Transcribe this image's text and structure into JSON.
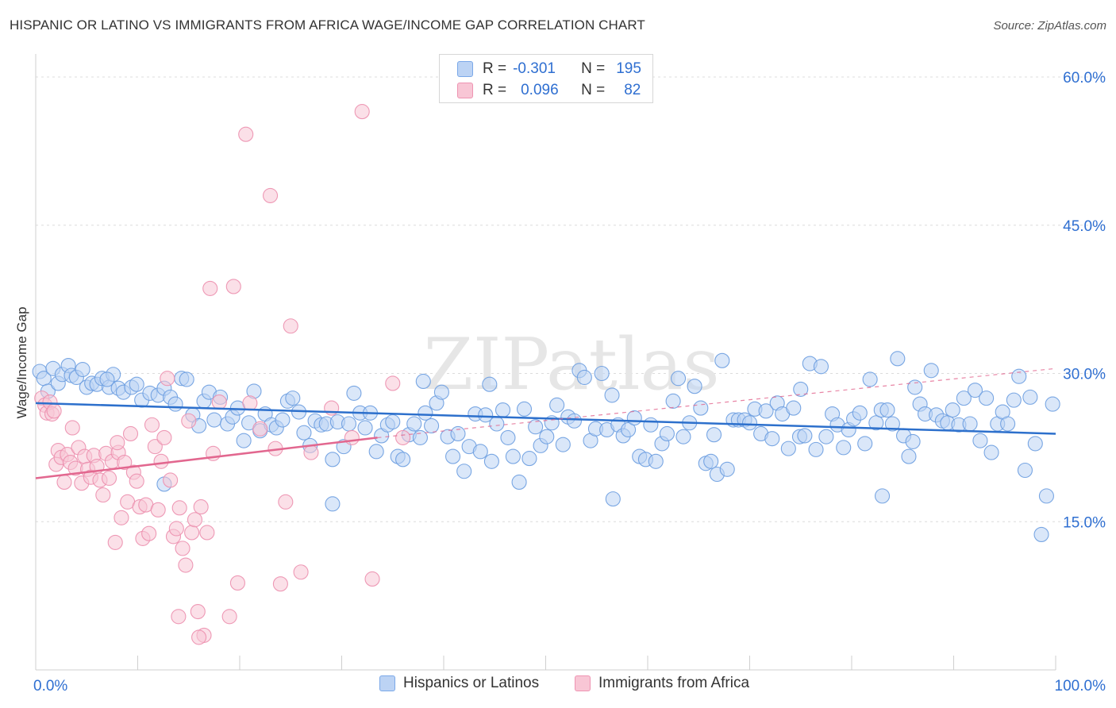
{
  "header": {
    "title": "HISPANIC OR LATINO VS IMMIGRANTS FROM AFRICA WAGE/INCOME GAP CORRELATION CHART",
    "source": "Source: ZipAtlas.com"
  },
  "stats_legend": {
    "rows": [
      {
        "r_label": "R =",
        "r_value": "-0.301",
        "n_label": "N =",
        "n_value": "195",
        "color": "#7aa8e8",
        "fill": "#bcd3f4"
      },
      {
        "r_label": "R =",
        "r_value": "0.096",
        "n_label": "N =",
        "n_value": "82",
        "color": "#ee94b2",
        "fill": "#f8c6d5"
      }
    ]
  },
  "legend": {
    "items": [
      {
        "label": "Hispanics or Latinos",
        "color": "#7aa8e8",
        "fill": "#bcd3f4"
      },
      {
        "label": "Immigrants from Africa",
        "color": "#ee94b2",
        "fill": "#f8c6d5"
      }
    ]
  },
  "chart_data": {
    "type": "scatter",
    "title": "HISPANIC OR LATINO VS IMMIGRANTS FROM AFRICA WAGE/INCOME GAP CORRELATION CHART",
    "xlabel": "",
    "ylabel": "Wage/Income Gap",
    "xlim": [
      0,
      100
    ],
    "ylim": [
      0,
      60
    ],
    "x_tick_labels": [
      "0.0%",
      "100.0%"
    ],
    "y_ticks": [
      15,
      30,
      45,
      60
    ],
    "y_tick_labels": [
      "15.0%",
      "30.0%",
      "45.0%",
      "60.0%"
    ],
    "grid": true,
    "legend_position": "bottom",
    "watermark": "ZIPatlas",
    "series": [
      {
        "name": "Hispanics or Latinos",
        "color": "#6b9de0",
        "fill": "#bcd3f4",
        "trend": {
          "x": [
            0,
            100
          ],
          "y": [
            27.0,
            23.9
          ],
          "style": "solid",
          "color": "#2d70cc"
        },
        "points": [
          [
            0.4,
            30.2
          ],
          [
            0.8,
            29.5
          ],
          [
            1.2,
            28.2
          ],
          [
            1.7,
            30.5
          ],
          [
            2.2,
            29.0
          ],
          [
            2.6,
            29.9
          ],
          [
            3.2,
            30.8
          ],
          [
            3.5,
            29.8
          ],
          [
            4.0,
            29.6
          ],
          [
            4.6,
            30.4
          ],
          [
            5.0,
            28.6
          ],
          [
            5.5,
            29.0
          ],
          [
            6.0,
            28.9
          ],
          [
            6.5,
            29.5
          ],
          [
            7.2,
            28.6
          ],
          [
            7.6,
            29.9
          ],
          [
            8.1,
            28.5
          ],
          [
            8.6,
            28.1
          ],
          [
            9.4,
            28.6
          ],
          [
            9.9,
            28.9
          ],
          [
            10.4,
            27.3
          ],
          [
            11.2,
            28.0
          ],
          [
            12.0,
            27.8
          ],
          [
            12.6,
            28.5
          ],
          [
            13.2,
            27.6
          ],
          [
            13.7,
            26.9
          ],
          [
            14.3,
            29.5
          ],
          [
            14.8,
            29.4
          ],
          [
            15.4,
            25.8
          ],
          [
            16.0,
            24.7
          ],
          [
            16.5,
            27.2
          ],
          [
            17.0,
            28.1
          ],
          [
            17.5,
            25.3
          ],
          [
            18.1,
            27.6
          ],
          [
            18.8,
            24.9
          ],
          [
            19.3,
            25.6
          ],
          [
            19.8,
            26.5
          ],
          [
            20.4,
            23.2
          ],
          [
            20.9,
            25.0
          ],
          [
            21.4,
            28.2
          ],
          [
            22.0,
            24.2
          ],
          [
            22.5,
            25.9
          ],
          [
            23.1,
            24.8
          ],
          [
            23.6,
            24.5
          ],
          [
            24.2,
            25.3
          ],
          [
            24.7,
            27.2
          ],
          [
            25.2,
            27.5
          ],
          [
            25.8,
            26.1
          ],
          [
            26.3,
            24.0
          ],
          [
            26.9,
            22.7
          ],
          [
            27.4,
            25.2
          ],
          [
            28.0,
            24.8
          ],
          [
            28.5,
            24.9
          ],
          [
            29.1,
            21.3
          ],
          [
            29.6,
            25.1
          ],
          [
            30.2,
            22.6
          ],
          [
            30.7,
            24.9
          ],
          [
            31.2,
            28.0
          ],
          [
            31.8,
            26.0
          ],
          [
            32.3,
            24.5
          ],
          [
            32.8,
            26.0
          ],
          [
            33.4,
            22.1
          ],
          [
            33.9,
            23.7
          ],
          [
            34.5,
            24.8
          ],
          [
            35.0,
            25.1
          ],
          [
            35.5,
            21.6
          ],
          [
            36.0,
            21.3
          ],
          [
            36.6,
            23.8
          ],
          [
            37.1,
            24.9
          ],
          [
            37.7,
            23.5
          ],
          [
            38.2,
            26.0
          ],
          [
            38.8,
            24.7
          ],
          [
            39.3,
            27.0
          ],
          [
            39.8,
            28.1
          ],
          [
            40.4,
            23.6
          ],
          [
            40.9,
            21.6
          ],
          [
            41.4,
            23.9
          ],
          [
            42.0,
            20.1
          ],
          [
            42.5,
            22.6
          ],
          [
            43.1,
            25.9
          ],
          [
            43.6,
            22.1
          ],
          [
            44.1,
            25.8
          ],
          [
            44.7,
            21.1
          ],
          [
            45.2,
            24.9
          ],
          [
            45.8,
            26.3
          ],
          [
            46.3,
            23.5
          ],
          [
            46.8,
            21.6
          ],
          [
            47.4,
            19.0
          ],
          [
            47.9,
            26.4
          ],
          [
            48.4,
            21.4
          ],
          [
            49.0,
            24.6
          ],
          [
            49.5,
            22.7
          ],
          [
            50.1,
            23.6
          ],
          [
            50.6,
            25.0
          ],
          [
            51.1,
            26.8
          ],
          [
            51.7,
            22.8
          ],
          [
            52.2,
            25.6
          ],
          [
            52.8,
            25.2
          ],
          [
            53.3,
            30.3
          ],
          [
            53.8,
            29.6
          ],
          [
            54.4,
            23.2
          ],
          [
            54.9,
            24.4
          ],
          [
            55.5,
            30.0
          ],
          [
            56.0,
            24.3
          ],
          [
            56.5,
            27.8
          ],
          [
            57.1,
            24.8
          ],
          [
            57.6,
            23.7
          ],
          [
            58.1,
            24.3
          ],
          [
            58.7,
            25.5
          ],
          [
            59.2,
            21.6
          ],
          [
            59.8,
            21.3
          ],
          [
            60.3,
            24.8
          ],
          [
            60.8,
            21.1
          ],
          [
            61.4,
            22.9
          ],
          [
            61.9,
            23.9
          ],
          [
            62.5,
            27.2
          ],
          [
            63.0,
            29.5
          ],
          [
            63.5,
            23.6
          ],
          [
            64.1,
            25.0
          ],
          [
            64.6,
            28.7
          ],
          [
            65.2,
            26.5
          ],
          [
            65.7,
            20.9
          ],
          [
            66.2,
            21.1
          ],
          [
            66.8,
            19.8
          ],
          [
            67.3,
            31.3
          ],
          [
            67.8,
            20.3
          ],
          [
            68.4,
            25.3
          ],
          [
            68.9,
            25.3
          ],
          [
            69.5,
            25.3
          ],
          [
            70.0,
            25.0
          ],
          [
            70.5,
            26.4
          ],
          [
            71.1,
            23.9
          ],
          [
            71.6,
            26.2
          ],
          [
            72.2,
            23.4
          ],
          [
            72.7,
            27.0
          ],
          [
            73.2,
            25.9
          ],
          [
            73.8,
            22.4
          ],
          [
            74.3,
            26.5
          ],
          [
            74.9,
            23.6
          ],
          [
            75.4,
            23.7
          ],
          [
            75.9,
            31.0
          ],
          [
            76.5,
            22.3
          ],
          [
            77.0,
            30.7
          ],
          [
            77.5,
            23.6
          ],
          [
            78.1,
            25.9
          ],
          [
            78.6,
            24.8
          ],
          [
            79.2,
            22.5
          ],
          [
            79.7,
            24.3
          ],
          [
            80.2,
            25.4
          ],
          [
            80.8,
            26.0
          ],
          [
            81.3,
            22.9
          ],
          [
            81.8,
            29.4
          ],
          [
            82.4,
            25.0
          ],
          [
            82.9,
            26.3
          ],
          [
            83.5,
            26.3
          ],
          [
            84.0,
            24.9
          ],
          [
            84.5,
            31.5
          ],
          [
            85.1,
            23.7
          ],
          [
            85.6,
            21.6
          ],
          [
            86.2,
            28.6
          ],
          [
            86.7,
            26.9
          ],
          [
            87.2,
            25.9
          ],
          [
            87.8,
            30.3
          ],
          [
            88.3,
            25.8
          ],
          [
            88.9,
            25.2
          ],
          [
            89.4,
            25.0
          ],
          [
            89.9,
            26.3
          ],
          [
            90.5,
            24.8
          ],
          [
            91.0,
            27.5
          ],
          [
            91.6,
            24.9
          ],
          [
            92.1,
            28.3
          ],
          [
            92.6,
            23.2
          ],
          [
            93.2,
            27.5
          ],
          [
            93.7,
            22.0
          ],
          [
            94.3,
            24.9
          ],
          [
            94.8,
            26.1
          ],
          [
            95.3,
            24.9
          ],
          [
            95.9,
            27.3
          ],
          [
            96.4,
            29.7
          ],
          [
            97.0,
            20.2
          ],
          [
            97.5,
            27.6
          ],
          [
            98.0,
            22.9
          ],
          [
            98.6,
            13.7
          ],
          [
            99.1,
            17.6
          ],
          [
            99.7,
            26.9
          ],
          [
            29.1,
            16.8
          ],
          [
            56.6,
            17.3
          ],
          [
            83.0,
            17.6
          ],
          [
            12.6,
            18.8
          ],
          [
            38.0,
            29.2
          ],
          [
            66.5,
            23.8
          ],
          [
            75.0,
            28.4
          ],
          [
            44.5,
            28.9
          ],
          [
            7.0,
            29.4
          ],
          [
            86.0,
            23.1
          ]
        ]
      },
      {
        "name": "Immigrants from Africa",
        "color": "#ec8fae",
        "fill": "#f8c6d5",
        "trend": {
          "x": [
            0,
            33.5
          ],
          "y": [
            19.4,
            23.5
          ],
          "style": "solid",
          "color": "#e2678f",
          "dashed_extension": {
            "x": [
              33.5,
              100
            ],
            "y": [
              23.5,
              30.5
            ]
          }
        },
        "points": [
          [
            0.6,
            27.5
          ],
          [
            0.9,
            26.8
          ],
          [
            1.1,
            26.0
          ],
          [
            1.4,
            27.1
          ],
          [
            1.6,
            25.9
          ],
          [
            1.8,
            26.2
          ],
          [
            2.0,
            20.8
          ],
          [
            2.2,
            22.2
          ],
          [
            2.5,
            21.5
          ],
          [
            2.8,
            19.0
          ],
          [
            3.1,
            21.8
          ],
          [
            3.4,
            21.0
          ],
          [
            3.6,
            24.5
          ],
          [
            3.9,
            20.4
          ],
          [
            4.2,
            22.5
          ],
          [
            4.5,
            18.9
          ],
          [
            4.8,
            21.6
          ],
          [
            5.1,
            20.3
          ],
          [
            5.4,
            19.5
          ],
          [
            5.7,
            21.7
          ],
          [
            6.0,
            20.6
          ],
          [
            6.3,
            19.2
          ],
          [
            6.6,
            17.7
          ],
          [
            6.9,
            21.9
          ],
          [
            7.2,
            19.4
          ],
          [
            7.5,
            21.1
          ],
          [
            7.8,
            12.9
          ],
          [
            8.1,
            22.0
          ],
          [
            8.4,
            15.4
          ],
          [
            8.7,
            21.0
          ],
          [
            9.0,
            17.0
          ],
          [
            9.3,
            23.9
          ],
          [
            9.6,
            20.0
          ],
          [
            9.9,
            19.1
          ],
          [
            10.2,
            16.5
          ],
          [
            10.5,
            13.3
          ],
          [
            10.8,
            16.7
          ],
          [
            11.1,
            13.8
          ],
          [
            11.4,
            24.8
          ],
          [
            11.7,
            22.6
          ],
          [
            12.0,
            16.2
          ],
          [
            12.3,
            21.1
          ],
          [
            12.6,
            23.5
          ],
          [
            12.9,
            29.5
          ],
          [
            13.2,
            19.2
          ],
          [
            13.5,
            13.5
          ],
          [
            13.8,
            14.3
          ],
          [
            14.1,
            16.4
          ],
          [
            14.4,
            12.3
          ],
          [
            14.7,
            10.6
          ],
          [
            15.0,
            25.2
          ],
          [
            15.3,
            13.9
          ],
          [
            15.6,
            15.2
          ],
          [
            15.9,
            5.9
          ],
          [
            16.2,
            16.5
          ],
          [
            16.5,
            3.5
          ],
          [
            16.8,
            13.9
          ],
          [
            17.1,
            38.6
          ],
          [
            17.4,
            21.9
          ],
          [
            18.0,
            27.1
          ],
          [
            19.0,
            5.4
          ],
          [
            19.4,
            38.8
          ],
          [
            19.8,
            8.8
          ],
          [
            20.6,
            54.2
          ],
          [
            21.0,
            27.0
          ],
          [
            22.0,
            24.4
          ],
          [
            23.0,
            48.0
          ],
          [
            23.5,
            22.4
          ],
          [
            24.0,
            8.7
          ],
          [
            24.5,
            17.0
          ],
          [
            25.0,
            34.8
          ],
          [
            26.0,
            9.9
          ],
          [
            27.0,
            22.0
          ],
          [
            29.0,
            26.5
          ],
          [
            31.0,
            23.5
          ],
          [
            32.0,
            56.5
          ],
          [
            33.0,
            9.2
          ],
          [
            35.0,
            29.0
          ],
          [
            36.0,
            23.5
          ],
          [
            14.0,
            5.4
          ],
          [
            8.0,
            23.0
          ],
          [
            16.0,
            3.3
          ]
        ]
      }
    ]
  }
}
